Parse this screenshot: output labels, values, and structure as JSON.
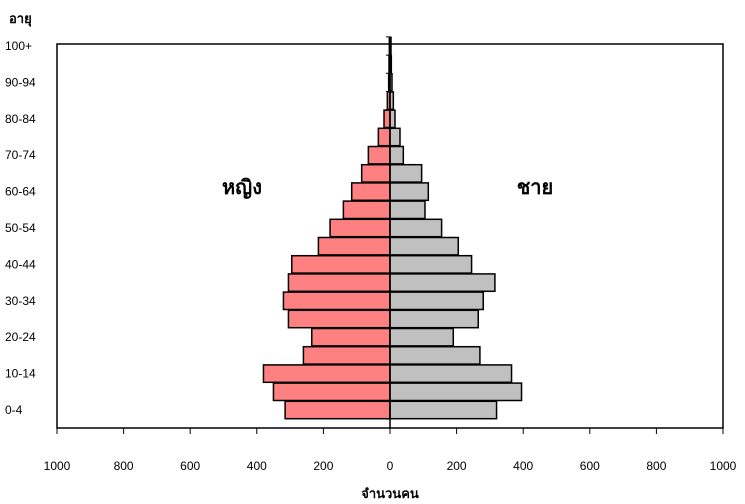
{
  "chart_data": {
    "type": "bar",
    "orientation": "horizontal-population-pyramid",
    "ylabel": "อายุ",
    "xlabel": "จำนวนคน",
    "xlim": [
      -1000,
      1000
    ],
    "x_ticks": [
      -1000,
      -800,
      -600,
      -400,
      -200,
      0,
      200,
      400,
      600,
      800,
      1000
    ],
    "x_tick_labels": [
      "1000",
      "800",
      "600",
      "400",
      "200",
      "0",
      "200",
      "400",
      "600",
      "800",
      "1000"
    ],
    "categories": [
      "0-4",
      "5-9",
      "10-14",
      "15-19",
      "20-24",
      "25-29",
      "30-34",
      "35-39",
      "40-44",
      "45-49",
      "50-54",
      "55-59",
      "60-64",
      "65-69",
      "70-74",
      "75-79",
      "80-84",
      "85-89",
      "90-94",
      "95-99",
      "100+"
    ],
    "y_tick_labels": [
      "0-4",
      "10-14",
      "20-24",
      "30-34",
      "40-44",
      "50-54",
      "60-64",
      "70-74",
      "80-84",
      "90-94",
      "100+"
    ],
    "series": [
      {
        "name": "หญิง",
        "side": "left",
        "color": "#ff8080",
        "values": [
          315,
          350,
          380,
          260,
          235,
          305,
          320,
          305,
          295,
          215,
          180,
          140,
          115,
          85,
          65,
          35,
          18,
          8,
          4,
          3,
          2
        ]
      },
      {
        "name": "ชาย",
        "side": "right",
        "color": "#c0c0c0",
        "values": [
          320,
          395,
          365,
          270,
          190,
          265,
          280,
          315,
          245,
          205,
          155,
          105,
          115,
          95,
          40,
          30,
          15,
          10,
          6,
          4,
          3
        ]
      }
    ],
    "grid": false,
    "legend": "none"
  }
}
